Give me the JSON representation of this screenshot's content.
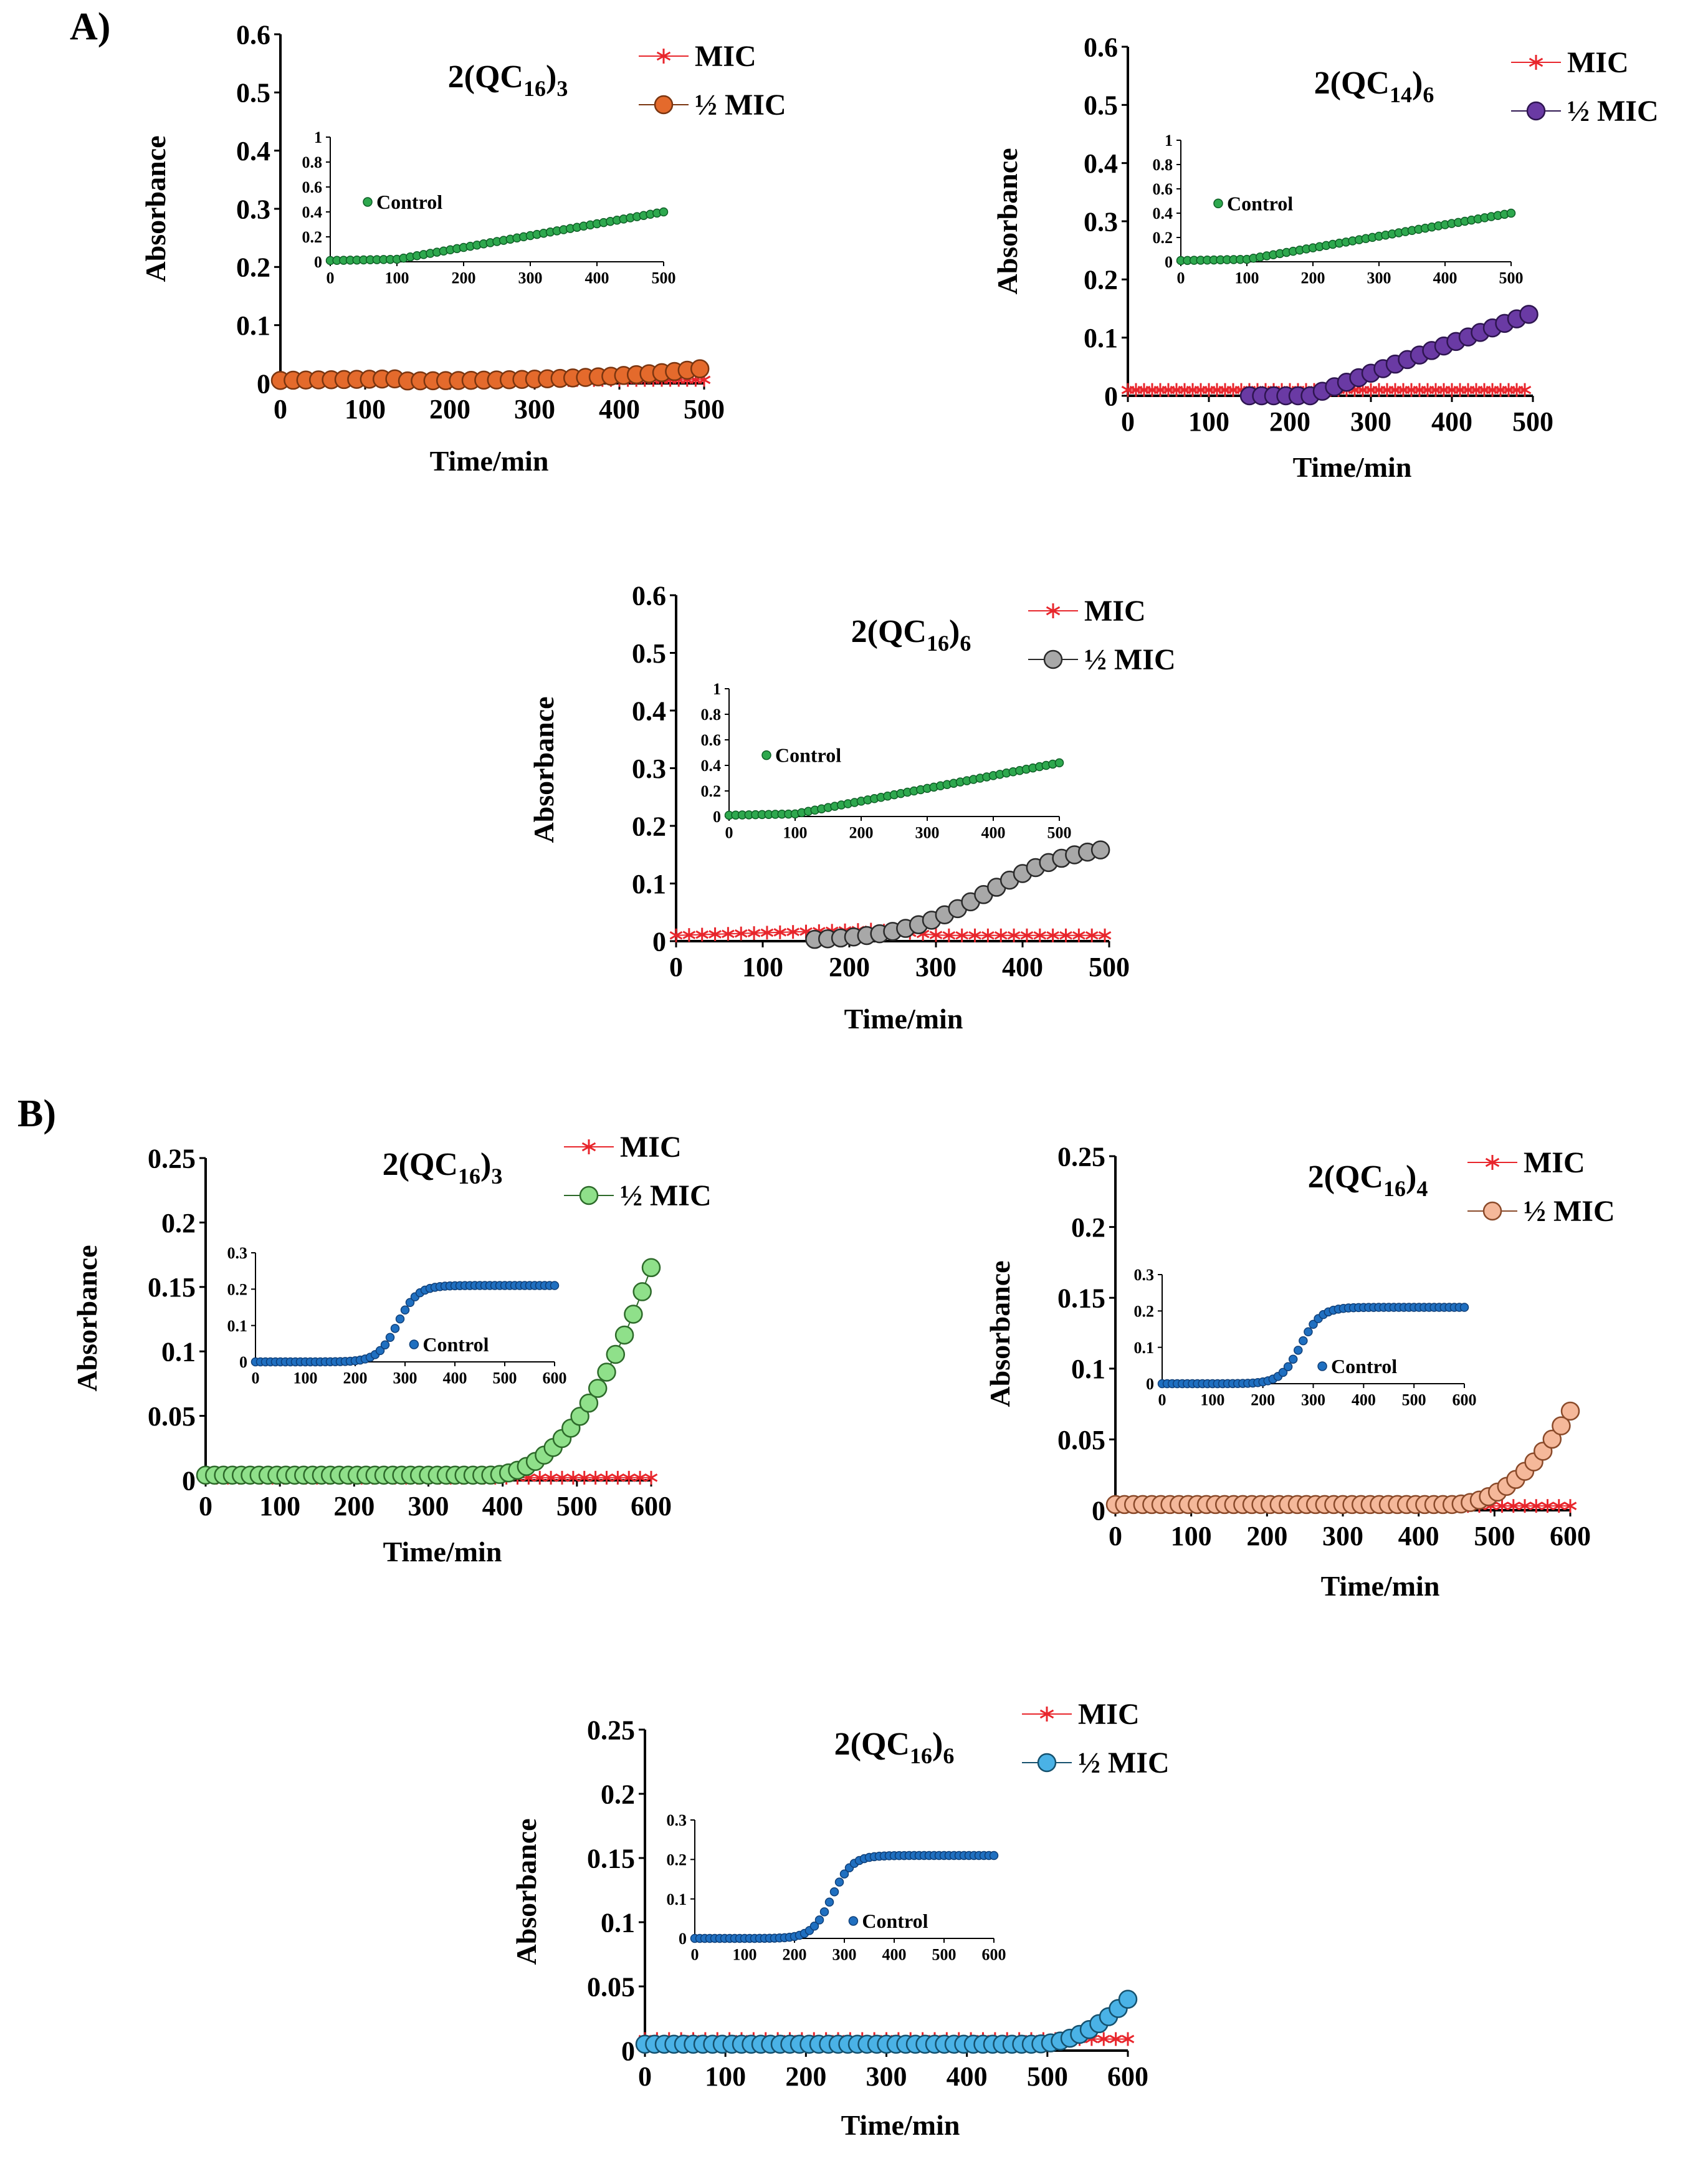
{
  "panel_labels": [
    "A)",
    "B)"
  ],
  "chart_data": [
    {
      "id": "A1",
      "type": "scatter",
      "title": "2(QC16)3",
      "title_base": "2(QC",
      "title_sub1": "16",
      "title_mid": ")",
      "title_sub2": "3",
      "xlabel": "Time/min",
      "ylabel": "Absorbance",
      "xlim": [
        0,
        500
      ],
      "ylim": [
        0,
        0.6
      ],
      "xticks": [
        "0",
        "100",
        "200",
        "300",
        "400",
        "500"
      ],
      "yticks": [
        "0",
        "0.1",
        "0.2",
        "0.3",
        "0.4",
        "0.5",
        "0.6"
      ],
      "legend": [
        "MIC",
        "½ MIC"
      ],
      "colors": {
        "mic": "#e8262c",
        "half": "#e46a2c",
        "half_edge": "#7a3510",
        "control": "#2ea84e",
        "control_edge": "#0d5e25"
      },
      "series": [
        {
          "name": "MIC",
          "x_start": 0,
          "x_step": 10,
          "x_end": 500,
          "values_note": "flat",
          "y0": 0.005,
          "y1": 0.006
        },
        {
          "name": "½ MIC",
          "x_start": 0,
          "x_step": 15,
          "x_end": 495,
          "sigmoid": [
            0.005,
            0.12,
            700,
            110,
            0.003
          ]
        }
      ],
      "inset": {
        "legend": "Control",
        "xlim": [
          0,
          500
        ],
        "ylim": [
          0,
          1
        ],
        "xticks": [
          "0",
          "100",
          "200",
          "300",
          "400",
          "500"
        ],
        "yticks": [
          "0",
          "0.2",
          "0.4",
          "0.6",
          "0.8",
          "1"
        ],
        "series": {
          "name": "Control",
          "x_start": 0,
          "x_step": 10,
          "x_end": 500,
          "linear_after": [
            100,
            0.02,
            0.4
          ]
        }
      }
    },
    {
      "id": "A2",
      "type": "scatter",
      "title": "2(QC14)6",
      "title_base": "2(QC",
      "title_sub1": "14",
      "title_mid": ")",
      "title_sub2": "6",
      "xlabel": "Time/min",
      "ylabel": "Absorbance",
      "xlim": [
        0,
        500
      ],
      "ylim": [
        0,
        0.6
      ],
      "xticks": [
        "0",
        "100",
        "200",
        "300",
        "400",
        "500"
      ],
      "yticks": [
        "0",
        "0.1",
        "0.2",
        "0.3",
        "0.4",
        "0.5",
        "0.6"
      ],
      "legend": [
        "MIC",
        "½ MIC"
      ],
      "colors": {
        "mic": "#e8262c",
        "half": "#6a3aa4",
        "half_edge": "#2e1550",
        "control": "#2ea84e",
        "control_edge": "#0d5e25"
      },
      "series": [
        {
          "name": "MIC",
          "x_start": 0,
          "x_step": 10,
          "x_end": 490,
          "y0": 0.01,
          "y1": 0.01
        },
        {
          "name": "½ MIC",
          "x_start": 150,
          "x_step": 15,
          "x_end": 495,
          "linear_after": [
            225,
            0.0,
            0.14
          ]
        }
      ],
      "inset": {
        "legend": "Control",
        "xlim": [
          0,
          500
        ],
        "ylim": [
          0,
          1
        ],
        "xticks": [
          "0",
          "100",
          "200",
          "300",
          "400",
          "500"
        ],
        "yticks": [
          "0",
          "0.2",
          "0.4",
          "0.6",
          "0.8",
          "1"
        ],
        "series": {
          "name": "Control",
          "x_start": 0,
          "x_step": 10,
          "x_end": 500,
          "linear_after": [
            100,
            0.02,
            0.4
          ]
        }
      }
    },
    {
      "id": "A3",
      "type": "scatter",
      "title": "2(QC16)6",
      "title_base": "2(QC",
      "title_sub1": "16",
      "title_mid": ")",
      "title_sub2": "6",
      "xlabel": "Time/min",
      "ylabel": "Absorbance",
      "xlim": [
        0,
        500
      ],
      "ylim": [
        0,
        0.6
      ],
      "xticks": [
        "0",
        "100",
        "200",
        "300",
        "400",
        "500"
      ],
      "yticks": [
        "0",
        "0.1",
        "0.2",
        "0.3",
        "0.4",
        "0.5",
        "0.6"
      ],
      "legend": [
        "MIC",
        "½ MIC"
      ],
      "colors": {
        "mic": "#e8262c",
        "half": "#a8a8a8",
        "half_edge": "#2a2a2a",
        "control": "#2ea84e",
        "control_edge": "#0d5e25"
      },
      "series": [
        {
          "name": "MIC",
          "x_start": 0,
          "x_step": 15,
          "x_end": 495,
          "bump": [
            0.01,
            0.02,
            225,
            0.01
          ]
        },
        {
          "name": "½ MIC",
          "x_start": 160,
          "x_step": 15,
          "x_end": 495,
          "sigmoid_raw": [
            0.0,
            0.17,
            360,
            50
          ]
        }
      ],
      "inset": {
        "legend": "Control",
        "xlim": [
          0,
          500
        ],
        "ylim": [
          0,
          1
        ],
        "xticks": [
          "0",
          "100",
          "200",
          "300",
          "400",
          "500"
        ],
        "yticks": [
          "0",
          "0.2",
          "0.4",
          "0.6",
          "0.8",
          "1"
        ],
        "series": {
          "name": "Control",
          "x_start": 0,
          "x_step": 10,
          "x_end": 500,
          "linear_after": [
            100,
            0.02,
            0.42
          ]
        }
      }
    },
    {
      "id": "B1",
      "type": "scatter",
      "title": "2(QC16)3",
      "title_base": "2(QC",
      "title_sub1": "16",
      "title_mid": ")",
      "title_sub2": "3",
      "xlabel": "Time/min",
      "ylabel": "Absorbance",
      "xlim": [
        0,
        600
      ],
      "ylim": [
        0,
        0.25
      ],
      "xticks": [
        "0",
        "100",
        "200",
        "300",
        "400",
        "500",
        "600"
      ],
      "yticks": [
        "0",
        "0.05",
        "0.1",
        "0.15",
        "0.2",
        "0.25"
      ],
      "legend": [
        "MIC",
        "½ MIC"
      ],
      "colors": {
        "mic": "#e8262c",
        "half": "#8fe08a",
        "half_edge": "#2d6a2a",
        "control": "#1f6fc0",
        "control_edge": "#0f3f78"
      },
      "series": [
        {
          "name": "MIC",
          "x_start": 0,
          "x_step": 15,
          "x_end": 600,
          "y0": 0.002,
          "y1": 0.002
        },
        {
          "name": "½ MIC",
          "x_start": 0,
          "x_step": 12,
          "x_end": 600,
          "exp_growth": [
            0.004,
            0.165,
            380,
            600
          ]
        }
      ],
      "inset": {
        "legend": "Control",
        "xlim": [
          0,
          600
        ],
        "ylim": [
          0,
          0.3
        ],
        "xticks": [
          "0",
          "100",
          "200",
          "300",
          "400",
          "500",
          "600"
        ],
        "yticks": [
          "0",
          "0.1",
          "0.2",
          "0.3"
        ],
        "series": {
          "name": "Control",
          "x_start": 0,
          "x_step": 10,
          "x_end": 600,
          "sigmoid_raw": [
            0.0,
            0.21,
            285,
            20
          ]
        }
      }
    },
    {
      "id": "B2",
      "type": "scatter",
      "title": "2(QC16)4",
      "title_base": "2(QC",
      "title_sub1": "16",
      "title_mid": ")",
      "title_sub2": "4",
      "xlabel": "Time/min",
      "ylabel": "Absorbance",
      "xlim": [
        0,
        600
      ],
      "ylim": [
        0,
        0.25
      ],
      "xticks": [
        "0",
        "100",
        "200",
        "300",
        "400",
        "500",
        "600"
      ],
      "yticks": [
        "0",
        "0.05",
        "0.1",
        "0.15",
        "0.2",
        "0.25"
      ],
      "legend": [
        "MIC",
        "½ MIC"
      ],
      "colors": {
        "mic": "#e8262c",
        "half": "#f5b89a",
        "half_edge": "#8a4a2a",
        "control": "#1f6fc0",
        "control_edge": "#0f3f78"
      },
      "series": [
        {
          "name": "MIC",
          "x_start": 0,
          "x_step": 15,
          "x_end": 600,
          "y0": 0.003,
          "y1": 0.003
        },
        {
          "name": "½ MIC",
          "x_start": 0,
          "x_step": 12,
          "x_end": 600,
          "exp_growth": [
            0.004,
            0.07,
            440,
            600
          ]
        }
      ],
      "inset": {
        "legend": "Control",
        "xlim": [
          0,
          600
        ],
        "ylim": [
          0,
          0.3
        ],
        "xticks": [
          "0",
          "100",
          "200",
          "300",
          "400",
          "500",
          "600"
        ],
        "yticks": [
          "0",
          "0.1",
          "0.2",
          "0.3"
        ],
        "series": {
          "name": "Control",
          "x_start": 0,
          "x_step": 10,
          "x_end": 600,
          "sigmoid_raw": [
            0.0,
            0.21,
            275,
            20
          ]
        }
      }
    },
    {
      "id": "B3",
      "type": "scatter",
      "title": "2(QC16)6",
      "title_base": "2(QC",
      "title_sub1": "16",
      "title_mid": ")",
      "title_sub2": "6",
      "xlabel": "Time/min",
      "ylabel": "Absorbance",
      "xlim": [
        0,
        600
      ],
      "ylim": [
        0,
        0.25
      ],
      "xticks": [
        "0",
        "100",
        "200",
        "300",
        "400",
        "500",
        "600"
      ],
      "yticks": [
        "0",
        "0.05",
        "0.1",
        "0.15",
        "0.2",
        "0.25"
      ],
      "legend": [
        "MIC",
        "½ MIC"
      ],
      "colors": {
        "mic": "#e8262c",
        "half": "#4ab2e6",
        "half_edge": "#15516e",
        "control": "#1f6fc0",
        "control_edge": "#0f3f78"
      },
      "series": [
        {
          "name": "MIC",
          "x_start": 0,
          "x_step": 15,
          "x_end": 600,
          "y0": 0.009,
          "y1": 0.009
        },
        {
          "name": "½ MIC",
          "x_start": 0,
          "x_step": 12,
          "x_end": 600,
          "exp_growth": [
            0.005,
            0.04,
            480,
            600
          ]
        }
      ],
      "inset": {
        "legend": "Control",
        "xlim": [
          0,
          600
        ],
        "ylim": [
          0,
          0.3
        ],
        "xticks": [
          "0",
          "100",
          "200",
          "300",
          "400",
          "500",
          "600"
        ],
        "yticks": [
          "0",
          "0.1",
          "0.2",
          "0.3"
        ],
        "series": {
          "name": "Control",
          "x_start": 0,
          "x_step": 10,
          "x_end": 600,
          "sigmoid_raw": [
            0.0,
            0.21,
            275,
            20
          ]
        }
      }
    }
  ]
}
